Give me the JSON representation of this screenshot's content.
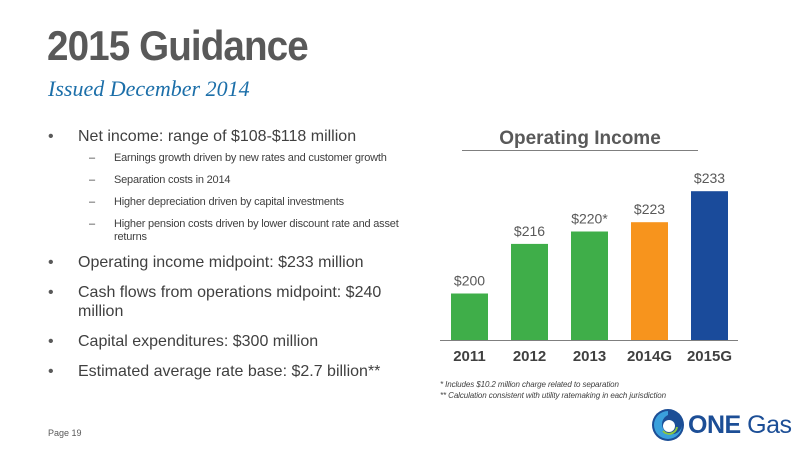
{
  "slide": {
    "title": "2015 Guidance",
    "subtitle": "Issued December 2014",
    "page": "Page 19"
  },
  "bullets": [
    {
      "text": "Net income: range of $108-$118 million",
      "sub": [
        "Earnings growth driven by new rates and customer growth",
        "Separation costs in 2014",
        "Higher depreciation driven by capital investments",
        "Higher pension costs driven by lower discount rate and asset returns"
      ]
    },
    {
      "text": "Operating income midpoint: $233 million"
    },
    {
      "text": "Cash flows from operations midpoint: $240 million"
    },
    {
      "text": "Capital expenditures: $300 million"
    },
    {
      "text": "Estimated average rate base: $2.7 billion**"
    }
  ],
  "notes": [
    "* Includes $10.2 million charge related to separation",
    "** Calculation consistent with utility ratemaking in each jurisdiction"
  ],
  "logo": {
    "text_one": "ONE",
    "text_gas": "Gas"
  },
  "colors": {
    "green": "#3fae49",
    "orange": "#f7941d",
    "blue": "#1a4b9b",
    "title_gray": "#595959",
    "subtitle_blue": "#1c6fa9"
  },
  "chart_data": {
    "type": "bar",
    "title": "Operating Income",
    "categories": [
      "2011",
      "2012",
      "2013",
      "2014G",
      "2015G"
    ],
    "values": [
      200,
      216,
      220,
      223,
      233
    ],
    "labels": [
      "$200",
      "$216",
      "$220*",
      "$223",
      "$233"
    ],
    "bar_colors": [
      "#3fae49",
      "#3fae49",
      "#3fae49",
      "#f7941d",
      "#1a4b9b"
    ],
    "ylim": [
      185,
      235
    ],
    "grid": false,
    "legend": "none"
  }
}
